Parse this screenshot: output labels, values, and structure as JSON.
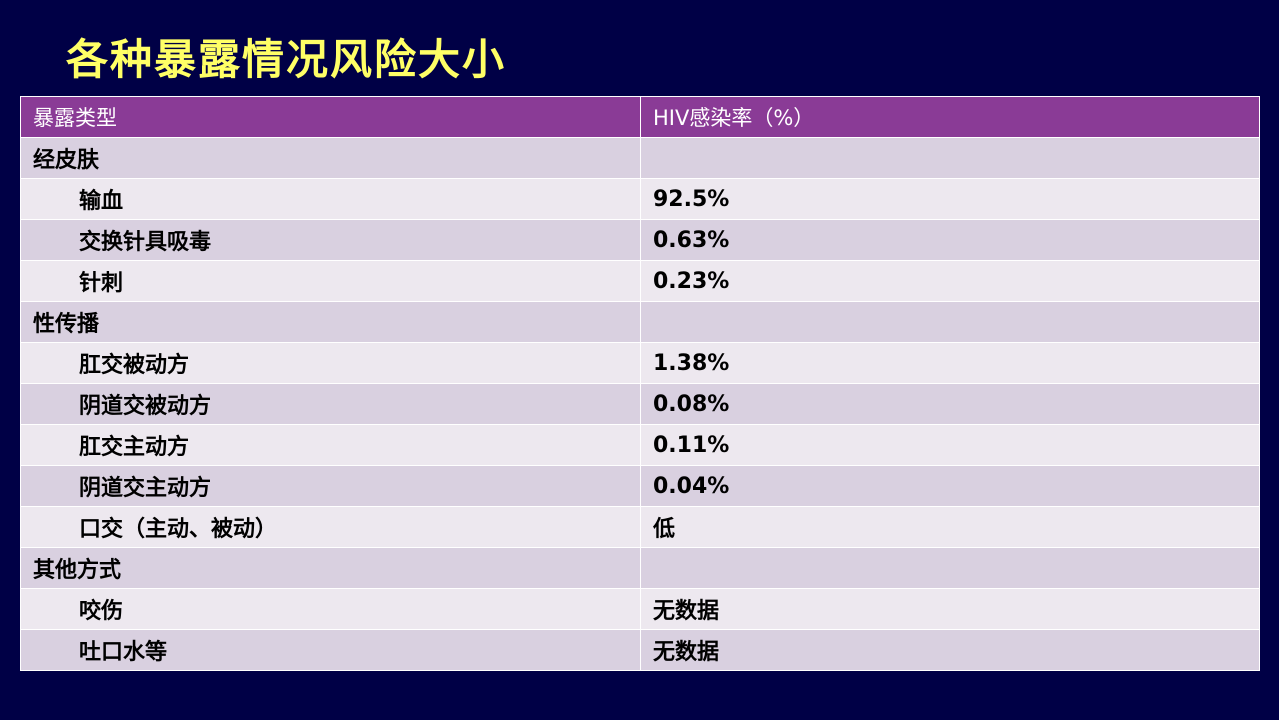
{
  "slide": {
    "title": "各种暴露情况风险大小"
  },
  "colors": {
    "background": "#000046",
    "title": "#ffff66",
    "header_bg": "#8a3b96",
    "row_dark": "#d9d0e0",
    "row_light": "#ede8ef"
  },
  "table": {
    "headers": [
      "暴露类型",
      "HIV感染率（%）"
    ],
    "rows": [
      {
        "type": "经皮肤",
        "rate": "",
        "category": true
      },
      {
        "type": "输血",
        "rate": "92.5%",
        "category": false
      },
      {
        "type": "交换针具吸毒",
        "rate": "0.63%",
        "category": false
      },
      {
        "type": "针刺",
        "rate": "0.23%",
        "category": false
      },
      {
        "type": "性传播",
        "rate": "",
        "category": true
      },
      {
        "type": "肛交被动方",
        "rate": "1.38%",
        "category": false
      },
      {
        "type": "阴道交被动方",
        "rate": "0.08%",
        "category": false
      },
      {
        "type": "肛交主动方",
        "rate": "0.11%",
        "category": false
      },
      {
        "type": "阴道交主动方",
        "rate": "0.04%",
        "category": false
      },
      {
        "type": "口交（主动、被动）",
        "rate": "低",
        "category": false
      },
      {
        "type": "其他方式",
        "rate": "",
        "category": true
      },
      {
        "type": "咬伤",
        "rate": "无数据",
        "category": false
      },
      {
        "type": "吐口水等",
        "rate": "无数据",
        "category": false
      }
    ]
  }
}
